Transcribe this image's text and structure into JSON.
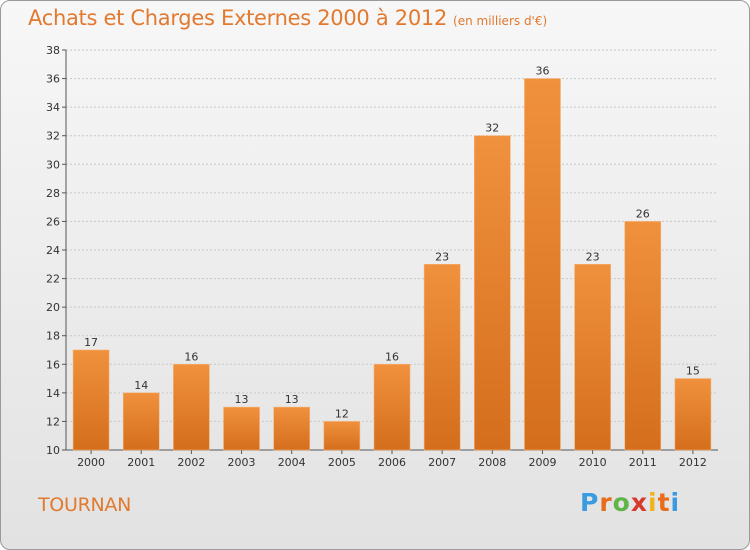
{
  "header": {
    "title": "Achats et Charges Externes 2000 à 2012",
    "subtitle": "(en milliers d'€)"
  },
  "footer": {
    "town": "TOURNAN",
    "logo": "Proxiti",
    "logo_colors": [
      "#3a9be0",
      "#e86c1c",
      "#5fb44a",
      "#d63a2c",
      "#f0b41a",
      "#e86c1c",
      "#3a9be0"
    ]
  },
  "chart_data": {
    "type": "bar",
    "categories": [
      "2000",
      "2001",
      "2002",
      "2003",
      "2004",
      "2005",
      "2006",
      "2007",
      "2008",
      "2009",
      "2010",
      "2011",
      "2012"
    ],
    "values": [
      17,
      14,
      16,
      13,
      13,
      12,
      16,
      23,
      32,
      36,
      23,
      26,
      15
    ],
    "data_labels": [
      "17",
      "14",
      "16",
      "13",
      "13",
      "12",
      "16",
      "23",
      "32",
      "36",
      "23",
      "26",
      "15"
    ],
    "yticks": [
      "10",
      "12",
      "14",
      "16",
      "18",
      "20",
      "22",
      "24",
      "26",
      "28",
      "30",
      "32",
      "34",
      "36",
      "38"
    ],
    "ylim": [
      10,
      38
    ],
    "grid": true,
    "bar_color": "#f0913d",
    "bar_color_dark": "#d46e1c"
  }
}
